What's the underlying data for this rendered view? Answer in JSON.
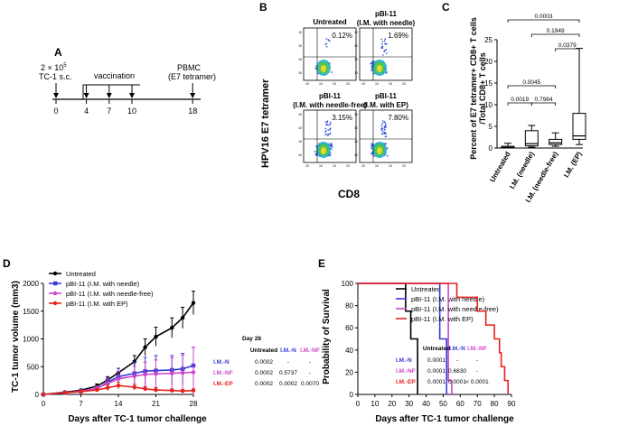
{
  "colors": {
    "untreated": "#000000",
    "needle": "#3a3ad6",
    "needle_free": "#cc44cc",
    "ep": "#e8211c",
    "black": "#000000"
  },
  "panelA": {
    "label": "A",
    "cells_line1": "2 × 10",
    "cells_exp": "5",
    "cells_line2": "TC-1 s.c.",
    "vaccination_label": "vaccination",
    "pbmc_line1": "PBMC",
    "pbmc_line2": "(E7 tetramer)",
    "days": [
      0,
      4,
      7,
      10,
      18
    ],
    "vaccination_days": [
      4,
      7,
      10
    ]
  },
  "panelB": {
    "label": "B",
    "ylabel": "HPV16 E7 tetramer",
    "xlabel": "CD8",
    "plots": [
      {
        "title1": "Untreated",
        "title2": "",
        "pct": "0.12%"
      },
      {
        "title1": "pBI-11",
        "title2": "(I.M. with needle)",
        "pct": "1.69%"
      },
      {
        "title1": "pBI-11",
        "title2": "(I.M. with needle-free)",
        "pct": "3.15%"
      },
      {
        "title1": "pBI-11",
        "title2": "(I.M. with EP)",
        "pct": "7.80%"
      }
    ],
    "tick_labels": [
      "10",
      "10",
      "10",
      "10"
    ]
  },
  "panelC": {
    "label": "C",
    "ylabel_line1": "Percent of E7 tetramer+ CD8+ T cells",
    "ylabel_line2": "/Total CD8+ T cells",
    "yticks": [
      0,
      5,
      10,
      15,
      20,
      25
    ],
    "ylim": [
      0,
      25
    ],
    "boxes": [
      {
        "name": "Untreated",
        "min": 0.0,
        "q1": 0.05,
        "median": 0.15,
        "q3": 0.4,
        "max": 1.1
      },
      {
        "name": "I.M. (needle)",
        "min": 0.2,
        "q1": 0.5,
        "median": 1.0,
        "q3": 4.0,
        "max": 5.2
      },
      {
        "name": "I.M. (needle-free)",
        "min": 0.4,
        "q1": 0.8,
        "median": 1.2,
        "q3": 2.0,
        "max": 3.5
      },
      {
        "name": "I.M. (EP)",
        "min": 0.8,
        "q1": 2.0,
        "median": 2.8,
        "q3": 8.0,
        "max": 23.0
      }
    ],
    "pvalues": [
      {
        "text": "0.0003",
        "a": 0,
        "b": 3
      },
      {
        "text": "0.1949",
        "a": 1,
        "b": 3
      },
      {
        "text": "0.0379",
        "a": 2,
        "b": 3
      },
      {
        "text": "0.0045",
        "a": 0,
        "b": 2
      },
      {
        "text": "0.0019",
        "a": 0,
        "b": 1
      },
      {
        "text": "0.7984",
        "a": 1,
        "b": 2
      }
    ]
  },
  "chart_data": [
    {
      "type": "line",
      "panel": "D",
      "xlabel": "Days after TC-1 tumor challenge",
      "ylabel": "TC-1 tumor volume (mm3)",
      "xlim": [
        0,
        28
      ],
      "ylim": [
        0,
        2000
      ],
      "xticks": [
        0,
        7,
        14,
        21,
        28
      ],
      "yticks": [
        0,
        500,
        1000,
        1500,
        2000
      ],
      "x": [
        0,
        4,
        7,
        10,
        12,
        14,
        17,
        19,
        21,
        24,
        26,
        28
      ],
      "series": [
        {
          "name": "Untreated",
          "values": [
            0,
            40,
            75,
            150,
            260,
            390,
            590,
            850,
            1040,
            1200,
            1380,
            1650
          ],
          "err": [
            0,
            10,
            20,
            40,
            60,
            80,
            110,
            150,
            170,
            180,
            190,
            210
          ]
        },
        {
          "name": "pBI-11 (I.M. with needle)",
          "values": [
            0,
            30,
            55,
            100,
            220,
            320,
            380,
            420,
            430,
            440,
            460,
            520
          ],
          "err": [
            0,
            10,
            20,
            40,
            80,
            150,
            200,
            250,
            270,
            260,
            280,
            330
          ]
        },
        {
          "name": "pBI-11 (I.M. with needle-free)",
          "values": [
            0,
            30,
            60,
            110,
            200,
            280,
            330,
            360,
            370,
            380,
            390,
            400
          ],
          "err": [
            0,
            10,
            20,
            40,
            80,
            130,
            180,
            220,
            250,
            280,
            320,
            450
          ]
        },
        {
          "name": "pBI-11 (I.M. with EP)",
          "values": [
            0,
            30,
            50,
            80,
            120,
            160,
            130,
            100,
            80,
            70,
            60,
            70
          ],
          "err": [
            0,
            10,
            20,
            30,
            50,
            60,
            50,
            40,
            40,
            30,
            30,
            30
          ]
        }
      ],
      "ptable": {
        "title": "Day 28",
        "cols": [
          "Untreated",
          "I.M.-N",
          "I.M.-NF"
        ],
        "rows": [
          {
            "label": "I.M.-N",
            "vals": [
              "0.0002",
              "-",
              "-"
            ]
          },
          {
            "label": "I.M.-NF",
            "vals": [
              "0.0002",
              "0.5737",
              "-"
            ]
          },
          {
            "label": "I.M.-EP",
            "vals": [
              "0.0002",
              "0.0002",
              "0.0070"
            ]
          }
        ]
      }
    },
    {
      "type": "line",
      "panel": "E",
      "xlabel": "Days after TC-1 tumor challenge",
      "ylabel": "Probability of Survival",
      "xlim": [
        0,
        90
      ],
      "ylim": [
        0,
        100
      ],
      "xticks": [
        0,
        10,
        20,
        30,
        40,
        50,
        60,
        70,
        80,
        90
      ],
      "yticks": [
        0,
        20,
        40,
        60,
        80,
        100
      ],
      "series": [
        {
          "name": "Untreated",
          "steps": [
            [
              0,
              100
            ],
            [
              28,
              75
            ],
            [
              31,
              50
            ],
            [
              35,
              0
            ]
          ]
        },
        {
          "name": "pBI-11 (I.M. with needle)",
          "steps": [
            [
              0,
              100
            ],
            [
              48,
              50
            ],
            [
              52,
              0
            ]
          ]
        },
        {
          "name": "pBI-11 (I.M. with needle-free)",
          "steps": [
            [
              0,
              100
            ],
            [
              50,
              100
            ],
            [
              53,
              12.5
            ],
            [
              55,
              0
            ]
          ]
        },
        {
          "name": "pBI-11 (I.M. with EP)",
          "steps": [
            [
              0,
              100
            ],
            [
              52,
              100
            ],
            [
              58,
              87.5
            ],
            [
              70,
              75
            ],
            [
              75,
              62.5
            ],
            [
              80,
              50
            ],
            [
              83,
              37.5
            ],
            [
              84,
              25
            ],
            [
              86,
              12.5
            ],
            [
              88,
              0
            ]
          ]
        }
      ],
      "ptable": {
        "cols": [
          "Untreated",
          "I.M.-N",
          "I.M.-NF"
        ],
        "rows": [
          {
            "label": "I.M.-N",
            "vals": [
              "0.0001",
              "-",
              "-"
            ]
          },
          {
            "label": "I.M.-NF",
            "vals": [
              "0.0001",
              "0.6830",
              "-"
            ]
          },
          {
            "label": "I.M.-EP",
            "vals": [
              "0.0001",
              "0.0001",
              "< 0.0001"
            ]
          }
        ]
      }
    }
  ],
  "panelD_label": "D",
  "panelE_label": "E"
}
